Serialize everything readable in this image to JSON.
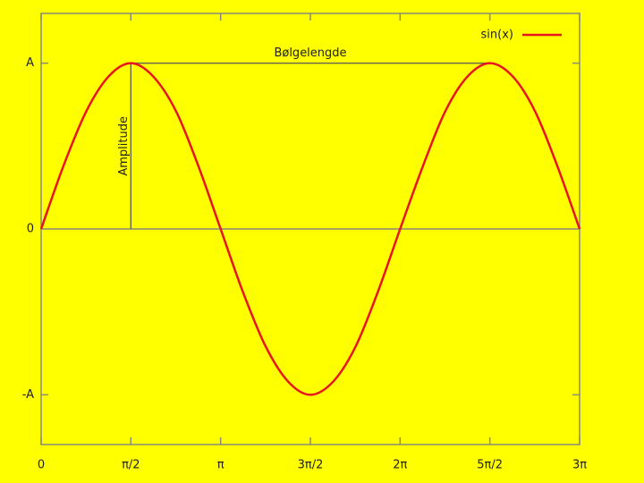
{
  "chart_data": {
    "type": "line",
    "legend_position": "upper right",
    "series": [
      {
        "name": "sin(x)",
        "color": "#e8141e",
        "x": [
          0,
          0.39,
          0.79,
          1.18,
          1.57,
          1.96,
          2.36,
          2.75,
          3.14,
          3.53,
          3.93,
          4.32,
          4.71,
          5.11,
          5.5,
          5.89,
          6.28,
          6.68,
          7.07,
          7.46,
          7.85,
          8.25,
          8.64,
          9.03,
          9.42
        ],
        "values": [
          0,
          0.38,
          0.71,
          0.92,
          1,
          0.92,
          0.71,
          0.38,
          0,
          -0.38,
          -0.71,
          -0.92,
          -1,
          -0.92,
          -0.71,
          -0.38,
          0,
          0.38,
          0.71,
          0.92,
          1,
          0.92,
          0.71,
          0.38,
          0
        ]
      }
    ],
    "xlim": [
      0,
      9.42
    ],
    "ylim": [
      -1.3,
      1.3
    ],
    "xticks": [
      0,
      {
        "value": 1.57,
        "label": "π/2"
      },
      {
        "value": 3.14,
        "label": "π"
      },
      {
        "value": 4.71,
        "label": "3π/2"
      },
      {
        "value": 6.28,
        "label": "2π"
      },
      {
        "value": 7.85,
        "label": "5π/2"
      },
      {
        "value": 9.42,
        "label": "3π"
      }
    ],
    "yticks": [
      {
        "value": -1,
        "label": "-A"
      },
      0,
      {
        "value": 1,
        "label": "A"
      }
    ],
    "annotations": [
      {
        "text": "Bølgelengde",
        "x": [
          1.57,
          7.85
        ],
        "y": [
          1,
          1
        ]
      },
      {
        "text": "Amplitude",
        "x": [
          1.57,
          1.57
        ],
        "y": [
          0,
          1
        ]
      }
    ]
  }
}
